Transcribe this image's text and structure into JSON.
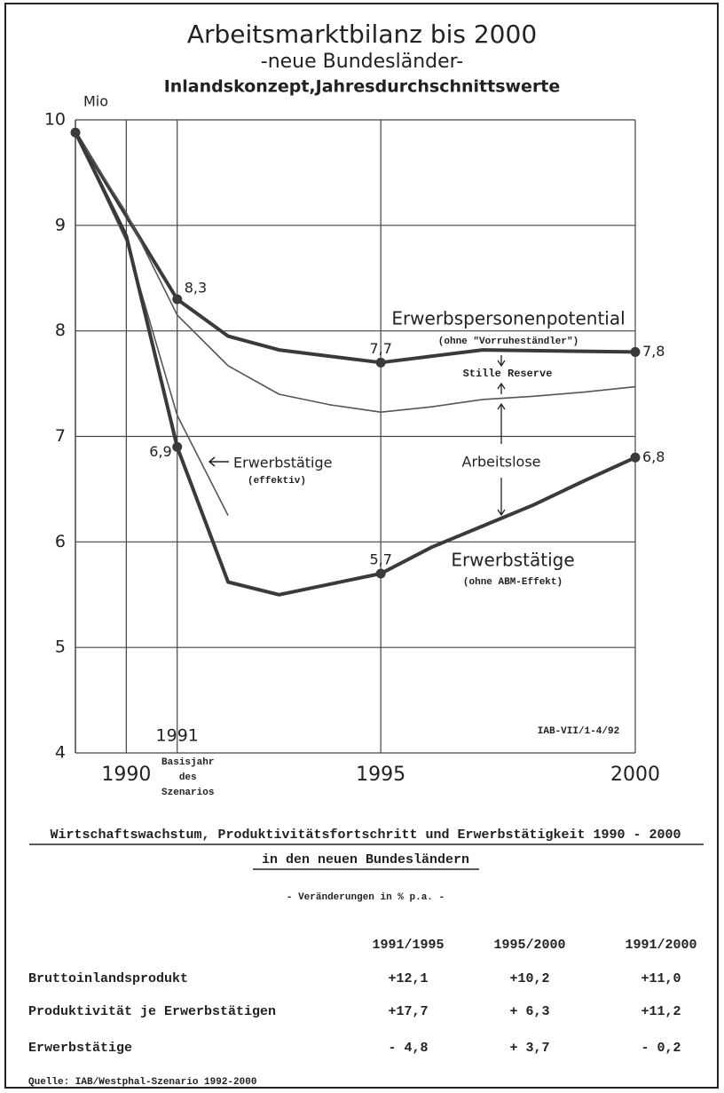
{
  "chart_data": {
    "type": "line",
    "title": "Arbeitsmarktbilanz bis 2000",
    "subtitle": "-neue Bundesländer-",
    "subtitle2": "Inlandskonzept,Jahresdurchschnittswerte",
    "y_unit": "Mio",
    "xlim": [
      1989,
      2000
    ],
    "xticks": [
      1990,
      1991,
      1995,
      2000
    ],
    "ylim": [
      4,
      10
    ],
    "yticks": [
      4,
      5,
      6,
      7,
      8,
      9,
      10
    ],
    "grid": true,
    "series": [
      {
        "name": "Erwerbspersonenpotential",
        "sublabel": "(ohne \"Vorruheständler\")",
        "color": "#3a3a3a",
        "width": 4,
        "x": [
          1989,
          1991,
          1992,
          1993,
          1995,
          1997,
          2000
        ],
        "values": [
          9.88,
          8.3,
          7.95,
          7.82,
          7.7,
          7.82,
          7.8
        ],
        "value_labels": [
          null,
          "8,3",
          null,
          null,
          "7,7",
          null,
          "7,8"
        ]
      },
      {
        "color": "#555",
        "width": 1.6,
        "x": [
          1989,
          1990,
          1991,
          1992,
          1993,
          1994,
          1995,
          1996,
          1997,
          1998,
          1999,
          2000
        ],
        "values": [
          9.88,
          9.12,
          8.15,
          7.67,
          7.4,
          7.3,
          7.23,
          7.28,
          7.35,
          7.38,
          7.42,
          7.47
        ]
      },
      {
        "name": "Erwerbstätige",
        "sublabel": "(effektiv)",
        "color": "#555",
        "width": 1.6,
        "x": [
          1989,
          1990,
          1991,
          1992
        ],
        "values": [
          9.88,
          8.85,
          7.2,
          6.25
        ]
      },
      {
        "name": "Erwerbstätige",
        "sublabel": "(ohne ABM-Effekt)",
        "color": "#3a3a3a",
        "width": 4,
        "x": [
          1989,
          1990,
          1991,
          1992,
          1993,
          1994,
          1995,
          1996,
          1997,
          1998,
          1999,
          2000
        ],
        "values": [
          9.88,
          8.9,
          6.9,
          5.62,
          5.5,
          5.6,
          5.7,
          5.95,
          6.15,
          6.35,
          6.58,
          6.8
        ],
        "value_labels": [
          null,
          null,
          "6,9",
          null,
          null,
          null,
          "5,7",
          null,
          null,
          null,
          null,
          "6,8"
        ]
      }
    ],
    "annotations": [
      "Stille Reserve",
      "Arbeitslose",
      "IAB-VII/1-4/92"
    ],
    "base_year_note": [
      "Basisjahr",
      "des",
      "Szenarios"
    ]
  },
  "table": {
    "title": [
      "Wirtschaftswachstum, Produktivitätsfortschritt und Erwerbstätigkeit 1990 - 2000",
      "in den neuen Bundesländern"
    ],
    "subtitle": "- Veränderungen in % p.a. -",
    "columns": [
      "1991/1995",
      "1995/2000",
      "1991/2000"
    ],
    "rows": [
      [
        "Bruttoinlandsprodukt",
        "+12,1",
        "+10,2",
        "+11,0"
      ],
      [
        "Produktivität je Erwerbstätigen",
        "+17,7",
        "+ 6,3",
        "+11,2"
      ],
      [
        "Erwerbstätige",
        "- 4,8",
        "+ 3,7",
        "- 0,2"
      ]
    ],
    "source": "Quelle: IAB/Westphal-Szenario 1992-2000"
  }
}
